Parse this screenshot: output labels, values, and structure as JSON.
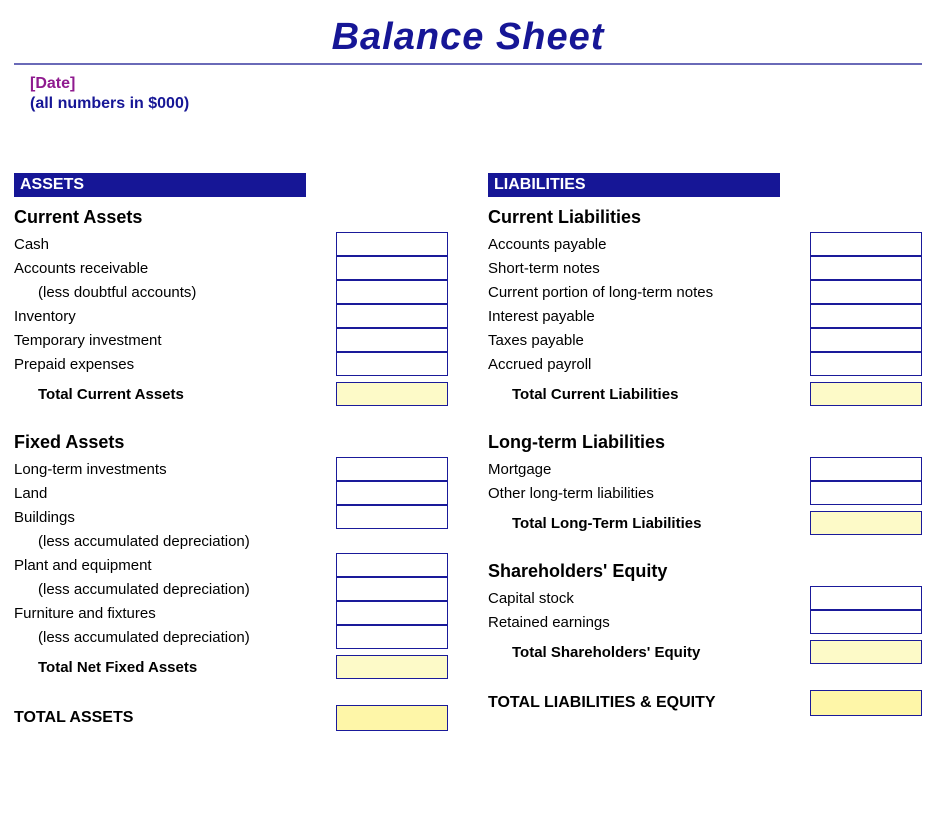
{
  "title": "Balance Sheet",
  "title_color": "#161696",
  "title_fontsize": 38,
  "underline_color": "#6a6ab8",
  "meta": {
    "date_placeholder": "[Date]",
    "date_color": "#8f1a8f",
    "note": "(all numbers in $000)",
    "note_color": "#161696",
    "meta_fontsize": 16
  },
  "styles": {
    "header_bg": "#161696",
    "cell_border": "#1a1a9a",
    "cell_bg_input": "#ffffff",
    "cell_bg_total": "#fdfac8",
    "cell_bg_grand": "#fef6a8",
    "text_color": "#000000"
  },
  "left": {
    "header": "ASSETS",
    "sections": [
      {
        "title": "Current Assets",
        "rows": [
          {
            "label": "Cash",
            "indent": false,
            "bold": false,
            "cell": "input"
          },
          {
            "label": "Accounts receivable",
            "indent": false,
            "bold": false,
            "cell": "input"
          },
          {
            "label": "(less doubtful accounts)",
            "indent": true,
            "bold": false,
            "cell": "input"
          },
          {
            "label": "Inventory",
            "indent": false,
            "bold": false,
            "cell": "input"
          },
          {
            "label": "Temporary investment",
            "indent": false,
            "bold": false,
            "cell": "input"
          },
          {
            "label": "Prepaid expenses",
            "indent": false,
            "bold": false,
            "cell": "input"
          },
          {
            "label": "Total Current Assets",
            "indent": true,
            "bold": true,
            "cell": "total"
          }
        ]
      },
      {
        "title": "Fixed Assets",
        "rows": [
          {
            "label": "Long-term investments",
            "indent": false,
            "bold": false,
            "cell": "input"
          },
          {
            "label": "Land",
            "indent": false,
            "bold": false,
            "cell": "input"
          },
          {
            "label": "Buildings",
            "indent": false,
            "bold": false,
            "cell": "input"
          },
          {
            "label": "(less accumulated depreciation)",
            "indent": true,
            "bold": false,
            "cell": "none"
          },
          {
            "label": "Plant and equipment",
            "indent": false,
            "bold": false,
            "cell": "input"
          },
          {
            "label": "(less accumulated depreciation)",
            "indent": true,
            "bold": false,
            "cell": "input"
          },
          {
            "label": "Furniture and fixtures",
            "indent": false,
            "bold": false,
            "cell": "input"
          },
          {
            "label": "(less accumulated depreciation)",
            "indent": true,
            "bold": false,
            "cell": "input"
          },
          {
            "label": "Total Net Fixed Assets",
            "indent": true,
            "bold": true,
            "cell": "total"
          }
        ]
      }
    ],
    "grand": {
      "label": "TOTAL ASSETS",
      "cell": "grand"
    }
  },
  "right": {
    "header": "LIABILITIES",
    "sections": [
      {
        "title": "Current Liabilities",
        "rows": [
          {
            "label": "Accounts payable",
            "indent": false,
            "bold": false,
            "cell": "input"
          },
          {
            "label": "Short-term notes",
            "indent": false,
            "bold": false,
            "cell": "input"
          },
          {
            "label": "Current portion of long-term notes",
            "indent": false,
            "bold": false,
            "cell": "input"
          },
          {
            "label": "Interest payable",
            "indent": false,
            "bold": false,
            "cell": "input"
          },
          {
            "label": "Taxes payable",
            "indent": false,
            "bold": false,
            "cell": "input"
          },
          {
            "label": "Accrued payroll",
            "indent": false,
            "bold": false,
            "cell": "input"
          },
          {
            "label": "Total Current Liabilities",
            "indent": true,
            "bold": true,
            "cell": "total"
          }
        ]
      },
      {
        "title": "Long-term Liabilities",
        "rows": [
          {
            "label": "Mortgage",
            "indent": false,
            "bold": false,
            "cell": "input"
          },
          {
            "label": "Other long-term liabilities",
            "indent": false,
            "bold": false,
            "cell": "input"
          },
          {
            "label": "Total Long-Term Liabilities",
            "indent": true,
            "bold": true,
            "cell": "total"
          }
        ]
      },
      {
        "title": "Shareholders' Equity",
        "rows": [
          {
            "label": "Capital stock",
            "indent": false,
            "bold": false,
            "cell": "input"
          },
          {
            "label": "Retained earnings",
            "indent": false,
            "bold": false,
            "cell": "input"
          },
          {
            "label": "Total Shareholders' Equity",
            "indent": true,
            "bold": true,
            "cell": "total"
          }
        ]
      }
    ],
    "grand": {
      "label": "TOTAL LIABILITIES & EQUITY",
      "cell": "grand"
    }
  }
}
